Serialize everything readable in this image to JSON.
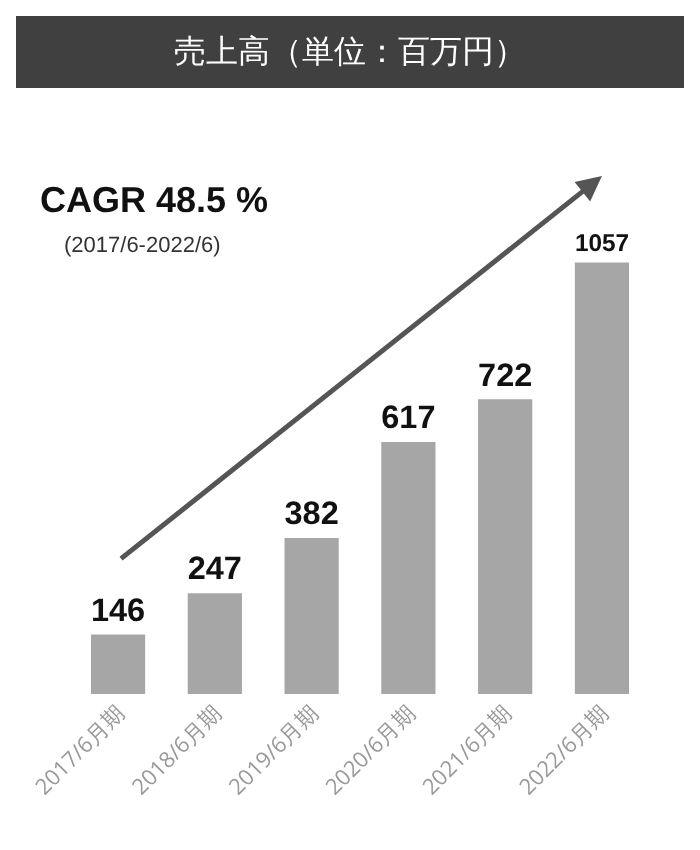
{
  "chart_data": {
    "type": "bar",
    "title": "売上高（単位：百万円）",
    "categories": [
      "2017/6月期",
      "2018/6月期",
      "2019/6月期",
      "2020/6月期",
      "2021/6月期",
      "2022/6月期"
    ],
    "values": [
      146,
      247,
      382,
      617,
      722,
      1057
    ],
    "color": "#a6a6a6",
    "data_labels": true,
    "annotations": [
      "CAGR 48.5 %",
      "(2017/6-2022/6)"
    ]
  }
}
